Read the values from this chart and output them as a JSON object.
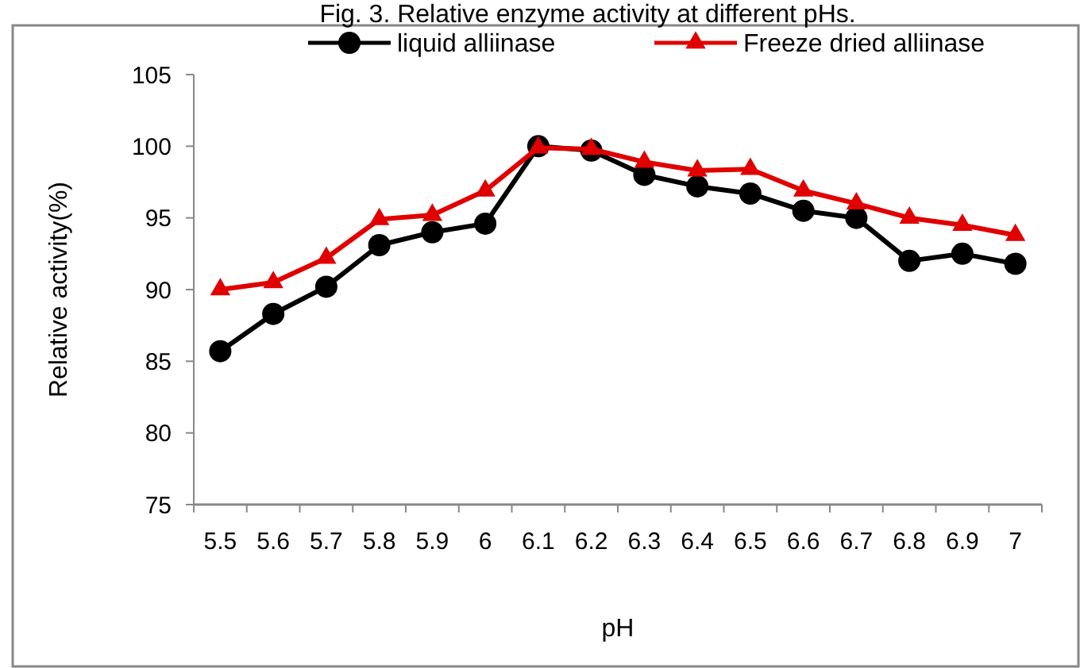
{
  "chart_data": {
    "type": "line",
    "title": "Fig. 3. Relative enzyme activity at different pHs.",
    "xlabel": "pH",
    "ylabel": "Relative activity(%)",
    "categories": [
      "5.5",
      "5.6",
      "5.7",
      "5.8",
      "5.9",
      "6",
      "6.1",
      "6.2",
      "6.3",
      "6.4",
      "6.5",
      "6.6",
      "6.7",
      "6.8",
      "6.9",
      "7"
    ],
    "series": [
      {
        "name": "liquid alliinase",
        "color": "#000000",
        "marker": "circle",
        "values": [
          85.7,
          88.3,
          90.2,
          93.1,
          94.0,
          94.6,
          100.0,
          99.7,
          98.0,
          97.2,
          96.7,
          95.5,
          95.0,
          92.0,
          92.5,
          91.8
        ]
      },
      {
        "name": "Freeze dried alliinase",
        "color": "#e00000",
        "marker": "triangle",
        "values": [
          90.0,
          90.5,
          92.2,
          94.9,
          95.2,
          96.9,
          99.9,
          99.8,
          98.9,
          98.3,
          98.4,
          96.9,
          96.0,
          95.0,
          94.5,
          93.8
        ]
      }
    ],
    "ylim": [
      75,
      105
    ],
    "yticks": [
      75,
      80,
      85,
      90,
      95,
      100,
      105
    ],
    "grid": false,
    "legend": "top right",
    "line_style": "solid"
  }
}
